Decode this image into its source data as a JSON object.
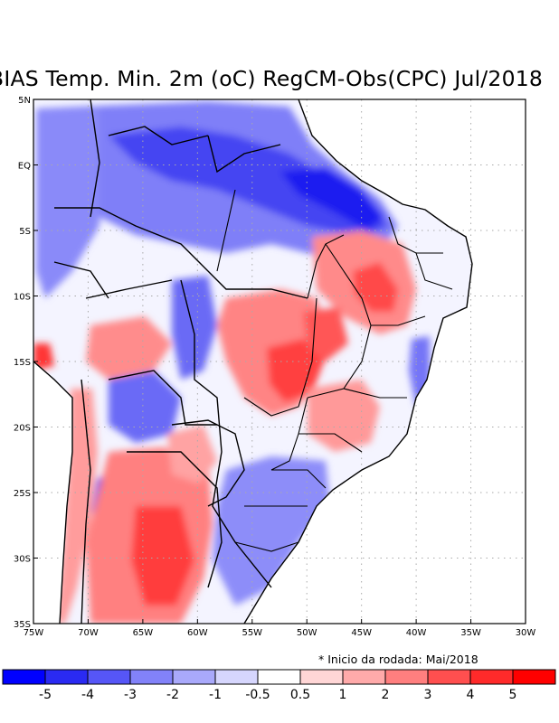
{
  "title": "BIAS Temp. Min. 2m (oC) RegCM-Obs(CPC) Jul/2018",
  "note": "* Inicio da rodada: Mai/2018",
  "map": {
    "lat_labels": [
      "5N",
      "EQ",
      "5S",
      "10S",
      "15S",
      "20S",
      "25S",
      "30S",
      "35S"
    ],
    "lon_labels": [
      "75W",
      "70W",
      "65W",
      "60W",
      "55W",
      "50W",
      "45W",
      "40W",
      "35W",
      "30W"
    ],
    "lon_range": [
      -75,
      -30
    ],
    "lat_range": [
      -35,
      5
    ]
  },
  "colorbar": {
    "labels": [
      "-5",
      "-4",
      "-3",
      "-2",
      "-1",
      "-0.5",
      "0.5",
      "1",
      "2",
      "3",
      "4",
      "5"
    ],
    "colors": [
      "#0000ff",
      "#2a2af2",
      "#5656f7",
      "#8282f9",
      "#a9a9fb",
      "#d6d6fd",
      "#ffffff",
      "#ffd6d6",
      "#ffaaaa",
      "#ff7f7f",
      "#ff4f4f",
      "#ff2a2a",
      "#ff0000"
    ]
  }
}
